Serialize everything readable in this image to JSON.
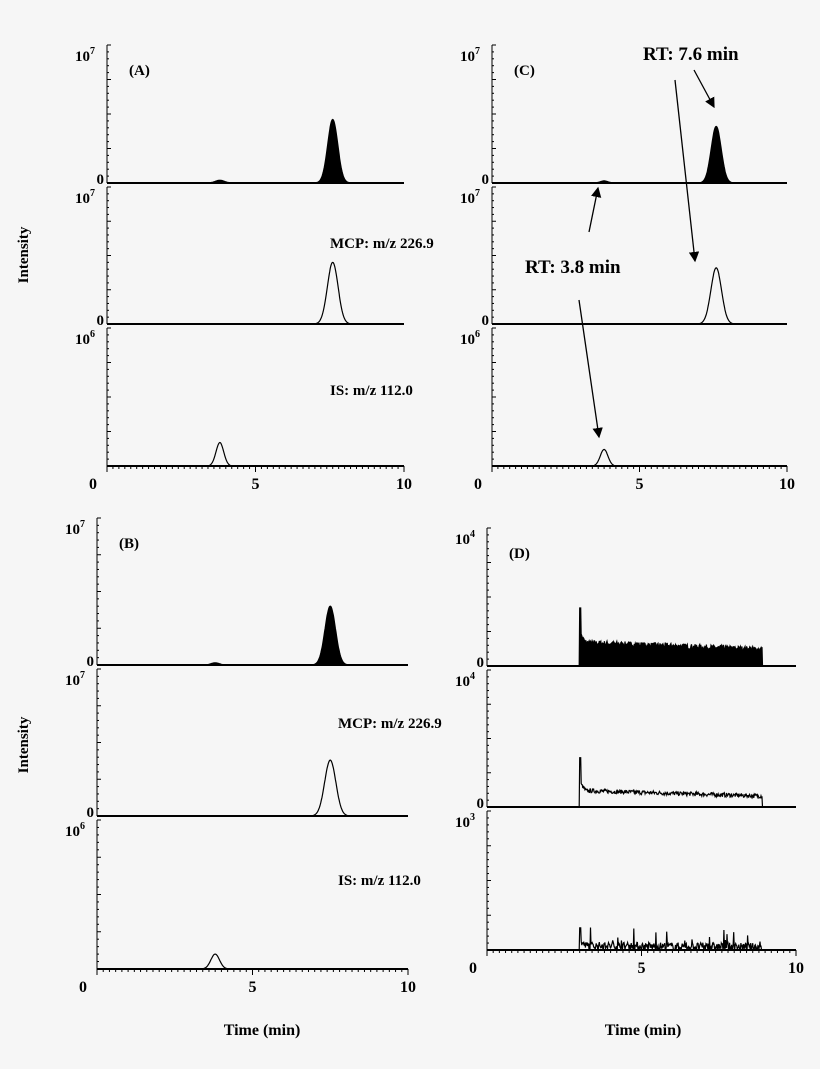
{
  "chart_data": [
    {
      "type": "line",
      "panel_label": "(A)",
      "ylabel": "Intensity",
      "xlabel": "",
      "x_ticks": [
        "0",
        "5",
        "10"
      ],
      "xlim": [
        0,
        10
      ],
      "traces": [
        {
          "ymax_label": "10",
          "ymax_exp": "7",
          "ymin_label": "0",
          "label": "",
          "filled": true,
          "peaks": [
            {
              "rt": 3.8,
              "height": 0.02,
              "width": 0.15
            },
            {
              "rt": 7.6,
              "height": 0.46,
              "width": 0.17
            }
          ]
        },
        {
          "ymax_label": "10",
          "ymax_exp": "7",
          "ymin_label": "0",
          "label": "MCP: m/z 226.9",
          "filled": false,
          "peaks": [
            {
              "rt": 7.6,
              "height": 0.45,
              "width": 0.18
            }
          ]
        },
        {
          "ymax_label": "10",
          "ymax_exp": "6",
          "ymin_label": "0",
          "label": "IS: m/z 112.0",
          "filled": false,
          "peaks": [
            {
              "rt": 3.8,
              "height": 0.17,
              "width": 0.13
            }
          ]
        }
      ]
    },
    {
      "type": "line",
      "panel_label": "(B)",
      "ylabel": "Intensity",
      "xlabel": "Time (min)",
      "x_ticks": [
        "0",
        "5",
        "10"
      ],
      "xlim": [
        0,
        10
      ],
      "traces": [
        {
          "ymax_label": "10",
          "ymax_exp": "7",
          "ymin_label": "0",
          "label": "",
          "filled": true,
          "peaks": [
            {
              "rt": 3.8,
              "height": 0.015,
              "width": 0.13
            },
            {
              "rt": 7.5,
              "height": 0.4,
              "width": 0.17
            }
          ]
        },
        {
          "ymax_label": "10",
          "ymax_exp": "7",
          "ymin_label": "0",
          "label": "MCP: m/z 226.9",
          "filled": false,
          "peaks": [
            {
              "rt": 7.5,
              "height": 0.38,
              "width": 0.18
            }
          ]
        },
        {
          "ymax_label": "10",
          "ymax_exp": "6",
          "ymin_label": "0",
          "label": "IS: m/z 112.0",
          "filled": false,
          "peaks": [
            {
              "rt": 3.8,
              "height": 0.1,
              "width": 0.14
            }
          ]
        }
      ]
    },
    {
      "type": "line",
      "panel_label": "(C)",
      "ylabel": "",
      "xlabel": "",
      "x_ticks": [
        "0",
        "5",
        "10"
      ],
      "xlim": [
        0,
        10
      ],
      "annotations": [
        "RT: 7.6 min",
        "RT: 3.8 min"
      ],
      "traces": [
        {
          "ymax_label": "10",
          "ymax_exp": "7",
          "ymin_label": "0",
          "label": "",
          "filled": true,
          "peaks": [
            {
              "rt": 3.8,
              "height": 0.015,
              "width": 0.13
            },
            {
              "rt": 7.6,
              "height": 0.41,
              "width": 0.17
            }
          ]
        },
        {
          "ymax_label": "10",
          "ymax_exp": "7",
          "ymin_label": "0",
          "label": "",
          "filled": false,
          "peaks": [
            {
              "rt": 7.6,
              "height": 0.41,
              "width": 0.18
            }
          ]
        },
        {
          "ymax_label": "10",
          "ymax_exp": "6",
          "ymin_label": "0",
          "label": "",
          "filled": false,
          "peaks": [
            {
              "rt": 3.8,
              "height": 0.12,
              "width": 0.13
            }
          ]
        }
      ]
    },
    {
      "type": "line",
      "panel_label": "(D)",
      "ylabel": "",
      "xlabel": "Time (min)",
      "x_ticks": [
        "0",
        "5",
        "10"
      ],
      "xlim": [
        0,
        10
      ],
      "traces": [
        {
          "ymax_label": "10",
          "ymax_exp": "4",
          "ymin_label": "0",
          "label": "",
          "filled": true,
          "noise": {
            "start": 3.0,
            "end": 8.9,
            "spike": 0.42,
            "level_start": 0.17,
            "level_end": 0.12,
            "amp": 0.02
          }
        },
        {
          "ymax_label": "10",
          "ymax_exp": "4",
          "ymin_label": "0",
          "label": "",
          "filled": false,
          "noise": {
            "start": 3.0,
            "end": 8.9,
            "spike": 0.36,
            "level_start": 0.12,
            "level_end": 0.08,
            "amp": 0.015
          }
        },
        {
          "ymax_label": "10",
          "ymax_exp": "3",
          "ymin_label": "0",
          "label": "",
          "filled": false,
          "noise": {
            "start": 3.0,
            "end": 8.9,
            "spike": 0.16,
            "level_start": 0.03,
            "level_end": 0.02,
            "amp": 0.03,
            "spiky": true
          }
        }
      ]
    }
  ]
}
